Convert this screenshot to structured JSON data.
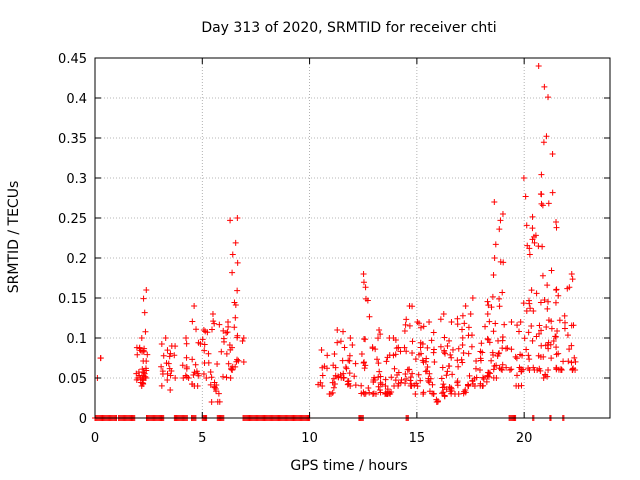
{
  "chart_data": {
    "type": "scatter",
    "title": "Day 313 of 2020, SRMTID for receiver chti",
    "xlabel": "GPS time / hours",
    "ylabel": "SRMTID / TECUs",
    "xlim": [
      0,
      24
    ],
    "ylim": [
      0,
      0.45
    ],
    "xticks": [
      0,
      5,
      10,
      15,
      20
    ],
    "yticks": [
      0,
      0.05,
      0.1,
      0.15,
      0.2,
      0.25,
      0.3,
      0.35,
      0.4,
      0.45
    ],
    "grid": true,
    "marker": "+",
    "color": "#ff0000",
    "series": [
      {
        "name": "SRMTID",
        "note": "dense cloud of points; representative envelope per time bin [time_h, min, max, count]",
        "clusters": [
          [
            0.2,
            0.05,
            0.075,
            3
          ],
          [
            2.1,
            0.04,
            0.1,
            22
          ],
          [
            2.3,
            0.05,
            0.16,
            18
          ],
          [
            3.3,
            0.035,
            0.1,
            14
          ],
          [
            3.6,
            0.05,
            0.09,
            8
          ],
          [
            4.2,
            0.05,
            0.1,
            10
          ],
          [
            4.7,
            0.04,
            0.14,
            16
          ],
          [
            5.2,
            0.05,
            0.11,
            12
          ],
          [
            5.6,
            0.02,
            0.13,
            18
          ],
          [
            6.1,
            0.05,
            0.12,
            14
          ],
          [
            6.5,
            0.06,
            0.25,
            22
          ],
          [
            6.8,
            0.07,
            0.1,
            4
          ],
          [
            10.6,
            0.04,
            0.085,
            8
          ],
          [
            11.0,
            0.03,
            0.08,
            12
          ],
          [
            11.5,
            0.05,
            0.11,
            16
          ],
          [
            12.0,
            0.04,
            0.1,
            14
          ],
          [
            12.6,
            0.03,
            0.18,
            20
          ],
          [
            13.1,
            0.03,
            0.11,
            22
          ],
          [
            13.6,
            0.03,
            0.1,
            18
          ],
          [
            14.1,
            0.04,
            0.1,
            16
          ],
          [
            14.6,
            0.04,
            0.14,
            22
          ],
          [
            15.1,
            0.03,
            0.12,
            20
          ],
          [
            15.6,
            0.03,
            0.12,
            22
          ],
          [
            16.1,
            0.02,
            0.13,
            20
          ],
          [
            16.6,
            0.03,
            0.12,
            20
          ],
          [
            17.1,
            0.03,
            0.14,
            22
          ],
          [
            17.6,
            0.04,
            0.15,
            20
          ],
          [
            18.1,
            0.04,
            0.13,
            18
          ],
          [
            18.5,
            0.05,
            0.2,
            22
          ],
          [
            18.8,
            0.06,
            0.27,
            20
          ],
          [
            19.2,
            0.06,
            0.12,
            10
          ],
          [
            19.8,
            0.04,
            0.12,
            16
          ],
          [
            20.2,
            0.06,
            0.3,
            22
          ],
          [
            20.6,
            0.06,
            0.28,
            18
          ],
          [
            20.9,
            0.05,
            0.44,
            26
          ],
          [
            21.3,
            0.06,
            0.33,
            22
          ],
          [
            21.7,
            0.06,
            0.16,
            16
          ],
          [
            22.2,
            0.06,
            0.18,
            18
          ]
        ],
        "zero_spans": [
          [
            0.0,
            1.0
          ],
          [
            1.1,
            1.85
          ],
          [
            2.4,
            3.2
          ],
          [
            3.7,
            4.3
          ],
          [
            4.5,
            4.7
          ],
          [
            5.0,
            5.2
          ],
          [
            5.7,
            6.0
          ],
          [
            6.9,
            10.0
          ],
          [
            12.3,
            12.5
          ],
          [
            14.5,
            14.6
          ],
          [
            19.3,
            19.6
          ],
          [
            20.4,
            20.45
          ],
          [
            21.2,
            21.25
          ],
          [
            21.8,
            21.85
          ]
        ]
      }
    ]
  }
}
